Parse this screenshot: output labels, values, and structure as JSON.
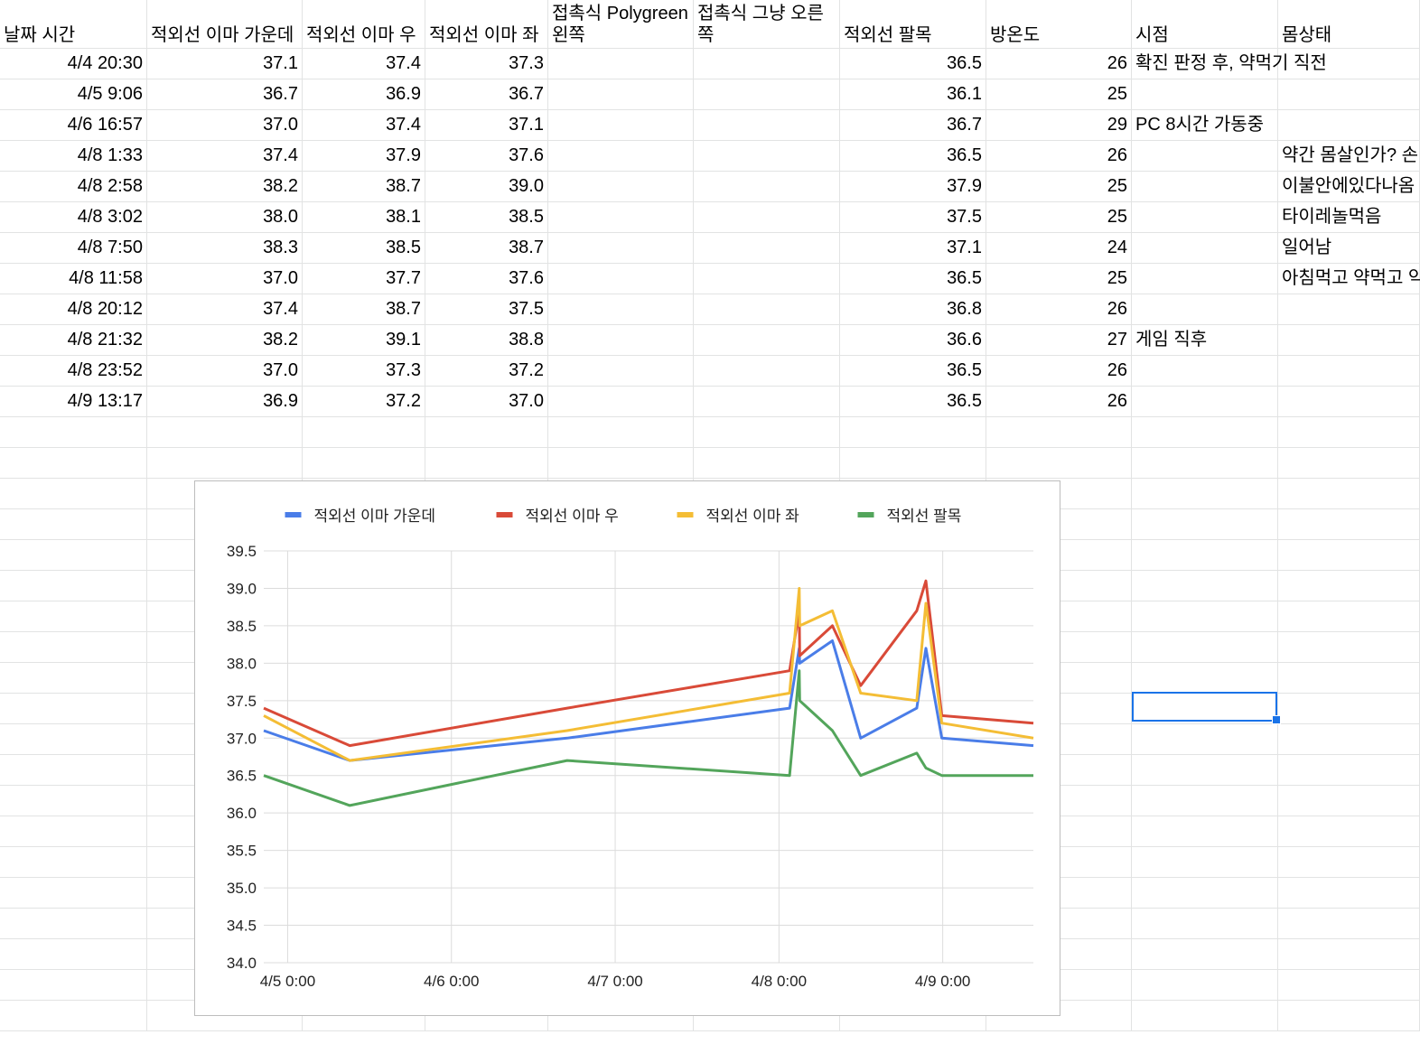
{
  "sheet": {
    "headers": [
      "날짜 시간",
      "적외선 이마 가운데",
      "적외선 이마 우",
      "적외선 이마 좌",
      "접촉식 Polygreen 왼쪽",
      "접촉식 그냥 오른쪽",
      "적외선 팔목",
      "방온도",
      "시점",
      "몸상태"
    ],
    "rows": [
      {
        "datetime": "4/4 20:30",
        "center": "37.1",
        "right": "37.4",
        "left": "37.3",
        "poly_left": "",
        "plain_right": "",
        "wrist": "36.5",
        "room": "26",
        "moment": "확진 판정 후, 약먹기 직전",
        "condition": ""
      },
      {
        "datetime": "4/5 9:06",
        "center": "36.7",
        "right": "36.9",
        "left": "36.7",
        "poly_left": "",
        "plain_right": "",
        "wrist": "36.1",
        "room": "25",
        "moment": "",
        "condition": ""
      },
      {
        "datetime": "4/6 16:57",
        "center": "37.0",
        "right": "37.4",
        "left": "37.1",
        "poly_left": "",
        "plain_right": "",
        "wrist": "36.7",
        "room": "29",
        "moment": "PC 8시간 가동중",
        "condition": ""
      },
      {
        "datetime": "4/8 1:33",
        "center": "37.4",
        "right": "37.9",
        "left": "37.6",
        "poly_left": "",
        "plain_right": "",
        "wrist": "36.5",
        "room": "26",
        "moment": "",
        "condition": "약간 몸살인가? 손"
      },
      {
        "datetime": "4/8 2:58",
        "center": "38.2",
        "right": "38.7",
        "left": "39.0",
        "poly_left": "",
        "plain_right": "",
        "wrist": "37.9",
        "room": "25",
        "moment": "",
        "condition": "이불안에있다나옴"
      },
      {
        "datetime": "4/8 3:02",
        "center": "38.0",
        "right": "38.1",
        "left": "38.5",
        "poly_left": "",
        "plain_right": "",
        "wrist": "37.5",
        "room": "25",
        "moment": "",
        "condition": "타이레놀먹음"
      },
      {
        "datetime": "4/8 7:50",
        "center": "38.3",
        "right": "38.5",
        "left": "38.7",
        "poly_left": "",
        "plain_right": "",
        "wrist": "37.1",
        "room": "24",
        "moment": "",
        "condition": "일어남"
      },
      {
        "datetime": "4/8 11:58",
        "center": "37.0",
        "right": "37.7",
        "left": "37.6",
        "poly_left": "",
        "plain_right": "",
        "wrist": "36.5",
        "room": "25",
        "moment": "",
        "condition": "아침먹고 약먹고 약"
      },
      {
        "datetime": "4/8 20:12",
        "center": "37.4",
        "right": "38.7",
        "left": "37.5",
        "poly_left": "",
        "plain_right": "",
        "wrist": "36.8",
        "room": "26",
        "moment": "",
        "condition": ""
      },
      {
        "datetime": "4/8 21:32",
        "center": "38.2",
        "right": "39.1",
        "left": "38.8",
        "poly_left": "",
        "plain_right": "",
        "wrist": "36.6",
        "room": "27",
        "moment": "게임 직후",
        "condition": ""
      },
      {
        "datetime": "4/8 23:52",
        "center": "37.0",
        "right": "37.3",
        "left": "37.2",
        "poly_left": "",
        "plain_right": "",
        "wrist": "36.5",
        "room": "26",
        "moment": "",
        "condition": ""
      },
      {
        "datetime": "4/9 13:17",
        "center": "36.9",
        "right": "37.2",
        "left": "37.0",
        "poly_left": "",
        "plain_right": "",
        "wrist": "36.5",
        "room": "26",
        "moment": "",
        "condition": ""
      }
    ]
  },
  "colors": {
    "center": "#4a7de8",
    "right": "#d94a38",
    "left": "#f4bd35",
    "wrist": "#53a55b",
    "grid": "#dcdcdc",
    "selection": "#1a73e8"
  },
  "chart_data": {
    "type": "line",
    "title": "",
    "xlabel": "",
    "ylabel": "",
    "legend": "top",
    "grid": true,
    "ylim": [
      34.0,
      39.5
    ],
    "yticks": [
      "34.0",
      "34.5",
      "35.0",
      "35.5",
      "36.0",
      "36.5",
      "37.0",
      "37.5",
      "38.0",
      "38.5",
      "39.0",
      "39.5"
    ],
    "xlim": [
      "2022-04-04T20:30",
      "2022-04-09T13:17"
    ],
    "xticks": [
      {
        "t": "2022-04-05T00:00",
        "label": "4/5 0:00"
      },
      {
        "t": "2022-04-06T00:00",
        "label": "4/6 0:00"
      },
      {
        "t": "2022-04-07T00:00",
        "label": "4/7 0:00"
      },
      {
        "t": "2022-04-08T00:00",
        "label": "4/8 0:00"
      },
      {
        "t": "2022-04-09T00:00",
        "label": "4/9 0:00"
      }
    ],
    "x": [
      "2022-04-04T20:30",
      "2022-04-05T09:06",
      "2022-04-06T16:57",
      "2022-04-08T01:33",
      "2022-04-08T02:58",
      "2022-04-08T03:02",
      "2022-04-08T07:50",
      "2022-04-08T11:58",
      "2022-04-08T20:12",
      "2022-04-08T21:32",
      "2022-04-08T23:52",
      "2022-04-09T13:17"
    ],
    "series": [
      {
        "name": "적외선 이마 가운데",
        "color": "#4a7de8",
        "values": [
          37.1,
          36.7,
          37.0,
          37.4,
          38.2,
          38.0,
          38.3,
          37.0,
          37.4,
          38.2,
          37.0,
          36.9
        ]
      },
      {
        "name": "적외선 이마 우",
        "color": "#d94a38",
        "values": [
          37.4,
          36.9,
          37.4,
          37.9,
          38.7,
          38.1,
          38.5,
          37.7,
          38.7,
          39.1,
          37.3,
          37.2
        ]
      },
      {
        "name": "적외선 이마 좌",
        "color": "#f4bd35",
        "values": [
          37.3,
          36.7,
          37.1,
          37.6,
          39.0,
          38.5,
          38.7,
          37.6,
          37.5,
          38.8,
          37.2,
          37.0
        ]
      },
      {
        "name": "적외선 팔목",
        "color": "#53a55b",
        "values": [
          36.5,
          36.1,
          36.7,
          36.5,
          37.9,
          37.5,
          37.1,
          36.5,
          36.8,
          36.6,
          36.5,
          36.5
        ]
      }
    ]
  }
}
